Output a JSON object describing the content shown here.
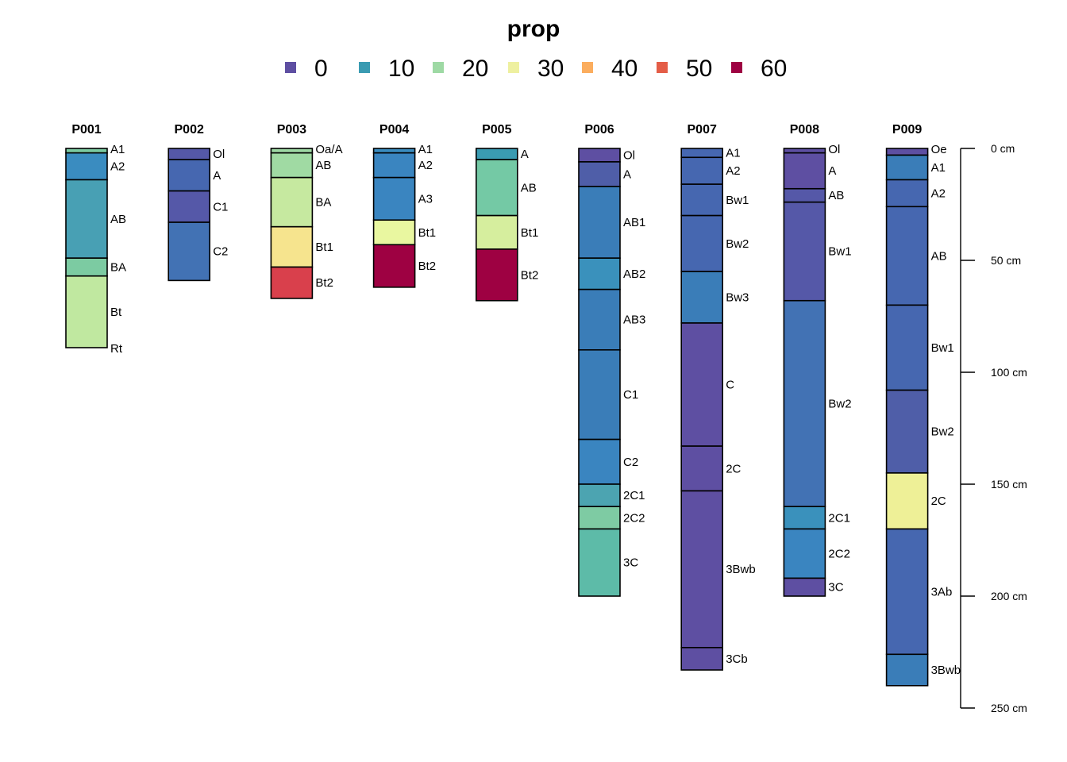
{
  "chart_data": {
    "type": "soil-profile",
    "title": "prop",
    "legend": [
      {
        "label": "0",
        "color": "#5E4FA2"
      },
      {
        "label": "10",
        "color": "#3A9BB2"
      },
      {
        "label": "20",
        "color": "#9ED9A4"
      },
      {
        "label": "30",
        "color": "#EEF0A0"
      },
      {
        "label": "40",
        "color": "#FBAD5E"
      },
      {
        "label": "50",
        "color": "#E45D47"
      },
      {
        "label": "60",
        "color": "#9E0142"
      }
    ],
    "depth_axis": {
      "ticks": [
        0,
        50,
        100,
        150,
        200,
        250
      ],
      "tick_labels": [
        "0 cm",
        "50 cm",
        "100 cm",
        "150 cm",
        "200 cm",
        "250 cm"
      ],
      "range": [
        0,
        250
      ]
    },
    "profiles": [
      {
        "id": "P001",
        "horizons": [
          {
            "name": "A1",
            "top": 0,
            "bottom": 2,
            "color": "#7CCBA2"
          },
          {
            "name": "A2",
            "top": 2,
            "bottom": 14,
            "color": "#3A8CC0"
          },
          {
            "name": "AB",
            "top": 14,
            "bottom": 49,
            "color": "#48A0B4"
          },
          {
            "name": "BA",
            "top": 49,
            "bottom": 57,
            "color": "#7CCBA2"
          },
          {
            "name": "Bt",
            "top": 57,
            "bottom": 89,
            "color": "#C0E8A0"
          },
          {
            "name": "Rt",
            "top": 89,
            "bottom": 89,
            "color": "#C0E8A0"
          }
        ]
      },
      {
        "id": "P002",
        "horizons": [
          {
            "name": "Ol",
            "top": 0,
            "bottom": 5,
            "color": "#5558A8"
          },
          {
            "name": "A",
            "top": 5,
            "bottom": 19,
            "color": "#4667B0"
          },
          {
            "name": "C1",
            "top": 19,
            "bottom": 33,
            "color": "#5558A8"
          },
          {
            "name": "C2",
            "top": 33,
            "bottom": 59,
            "color": "#4272B4"
          }
        ]
      },
      {
        "id": "P003",
        "horizons": [
          {
            "name": "Oa/A",
            "top": 0,
            "bottom": 2,
            "color": "#9ED9A4"
          },
          {
            "name": "AB",
            "top": 2,
            "bottom": 13,
            "color": "#A0DAA3"
          },
          {
            "name": "BA",
            "top": 13,
            "bottom": 35,
            "color": "#C6E9A0"
          },
          {
            "name": "Bt1",
            "top": 35,
            "bottom": 53,
            "color": "#F6E48E"
          },
          {
            "name": "Bt2",
            "top": 53,
            "bottom": 67,
            "color": "#D9404C"
          }
        ]
      },
      {
        "id": "P004",
        "horizons": [
          {
            "name": "A1",
            "top": 0,
            "bottom": 2,
            "color": "#3A8CC0"
          },
          {
            "name": "A2",
            "top": 2,
            "bottom": 13,
            "color": "#3A85C0"
          },
          {
            "name": "A3",
            "top": 13,
            "bottom": 32,
            "color": "#3A85C0"
          },
          {
            "name": "Bt1",
            "top": 32,
            "bottom": 43,
            "color": "#E9F7A0"
          },
          {
            "name": "Bt2",
            "top": 43,
            "bottom": 62,
            "color": "#9E0142"
          }
        ]
      },
      {
        "id": "P005",
        "horizons": [
          {
            "name": "A",
            "top": 0,
            "bottom": 5,
            "color": "#3A9BB2"
          },
          {
            "name": "AB",
            "top": 5,
            "bottom": 30,
            "color": "#74C9A5"
          },
          {
            "name": "Bt1",
            "top": 30,
            "bottom": 45,
            "color": "#D6EE9E"
          },
          {
            "name": "Bt2",
            "top": 45,
            "bottom": 68,
            "color": "#9E0142"
          }
        ]
      },
      {
        "id": "P006",
        "horizons": [
          {
            "name": "Ol",
            "top": 0,
            "bottom": 6,
            "color": "#5E4FA2"
          },
          {
            "name": "A",
            "top": 6,
            "bottom": 17,
            "color": "#4F5EA8"
          },
          {
            "name": "AB1",
            "top": 17,
            "bottom": 49,
            "color": "#3A7DB8"
          },
          {
            "name": "AB2",
            "top": 49,
            "bottom": 63,
            "color": "#3A91BC"
          },
          {
            "name": "AB3",
            "top": 63,
            "bottom": 90,
            "color": "#3A7DB8"
          },
          {
            "name": "C1",
            "top": 90,
            "bottom": 130,
            "color": "#3A7DB8"
          },
          {
            "name": "C2",
            "top": 130,
            "bottom": 150,
            "color": "#3A85C0"
          },
          {
            "name": "2C1",
            "top": 150,
            "bottom": 160,
            "color": "#4CA4B1"
          },
          {
            "name": "2C2",
            "top": 160,
            "bottom": 170,
            "color": "#7ECBA3"
          },
          {
            "name": "3C",
            "top": 170,
            "bottom": 200,
            "color": "#5DBBA8"
          }
        ]
      },
      {
        "id": "P007",
        "horizons": [
          {
            "name": "A1",
            "top": 0,
            "bottom": 4,
            "color": "#4667B0"
          },
          {
            "name": "A2",
            "top": 4,
            "bottom": 16,
            "color": "#4667B0"
          },
          {
            "name": "Bw1",
            "top": 16,
            "bottom": 30,
            "color": "#4667B0"
          },
          {
            "name": "Bw2",
            "top": 30,
            "bottom": 55,
            "color": "#4667B0"
          },
          {
            "name": "Bw3",
            "top": 55,
            "bottom": 78,
            "color": "#3A7DB8"
          },
          {
            "name": "C",
            "top": 78,
            "bottom": 133,
            "color": "#5E4FA2"
          },
          {
            "name": "2C",
            "top": 133,
            "bottom": 153,
            "color": "#5E4FA2"
          },
          {
            "name": "3Bwb",
            "top": 153,
            "bottom": 223,
            "color": "#5E4FA2"
          },
          {
            "name": "3Cb",
            "top": 223,
            "bottom": 233,
            "color": "#5E4FA2"
          }
        ]
      },
      {
        "id": "P008",
        "horizons": [
          {
            "name": "Ol",
            "top": 0,
            "bottom": 2,
            "color": "#5E4FA2"
          },
          {
            "name": "A",
            "top": 2,
            "bottom": 18,
            "color": "#5E4FA2"
          },
          {
            "name": "AB",
            "top": 18,
            "bottom": 24,
            "color": "#5558A8"
          },
          {
            "name": "Bw1",
            "top": 24,
            "bottom": 68,
            "color": "#5558A8"
          },
          {
            "name": "Bw2",
            "top": 68,
            "bottom": 160,
            "color": "#4272B4"
          },
          {
            "name": "2C1",
            "top": 160,
            "bottom": 170,
            "color": "#3A91BC"
          },
          {
            "name": "2C2",
            "top": 170,
            "bottom": 192,
            "color": "#3A85C0"
          },
          {
            "name": "3C",
            "top": 192,
            "bottom": 200,
            "color": "#5E4FA2"
          }
        ]
      },
      {
        "id": "P009",
        "horizons": [
          {
            "name": "Oe",
            "top": 0,
            "bottom": 3,
            "color": "#5E4FA2"
          },
          {
            "name": "A1",
            "top": 3,
            "bottom": 14,
            "color": "#3A7DB8"
          },
          {
            "name": "A2",
            "top": 14,
            "bottom": 26,
            "color": "#4667B0"
          },
          {
            "name": "AB",
            "top": 26,
            "bottom": 70,
            "color": "#4667B0"
          },
          {
            "name": "Bw1",
            "top": 70,
            "bottom": 108,
            "color": "#4667B0"
          },
          {
            "name": "Bw2",
            "top": 108,
            "bottom": 145,
            "color": "#4F5EA8"
          },
          {
            "name": "2C",
            "top": 145,
            "bottom": 170,
            "color": "#EEF097"
          },
          {
            "name": "3Ab",
            "top": 170,
            "bottom": 226,
            "color": "#4667B0"
          },
          {
            "name": "3Bwb",
            "top": 226,
            "bottom": 240,
            "color": "#3A7DB8"
          }
        ]
      }
    ]
  }
}
